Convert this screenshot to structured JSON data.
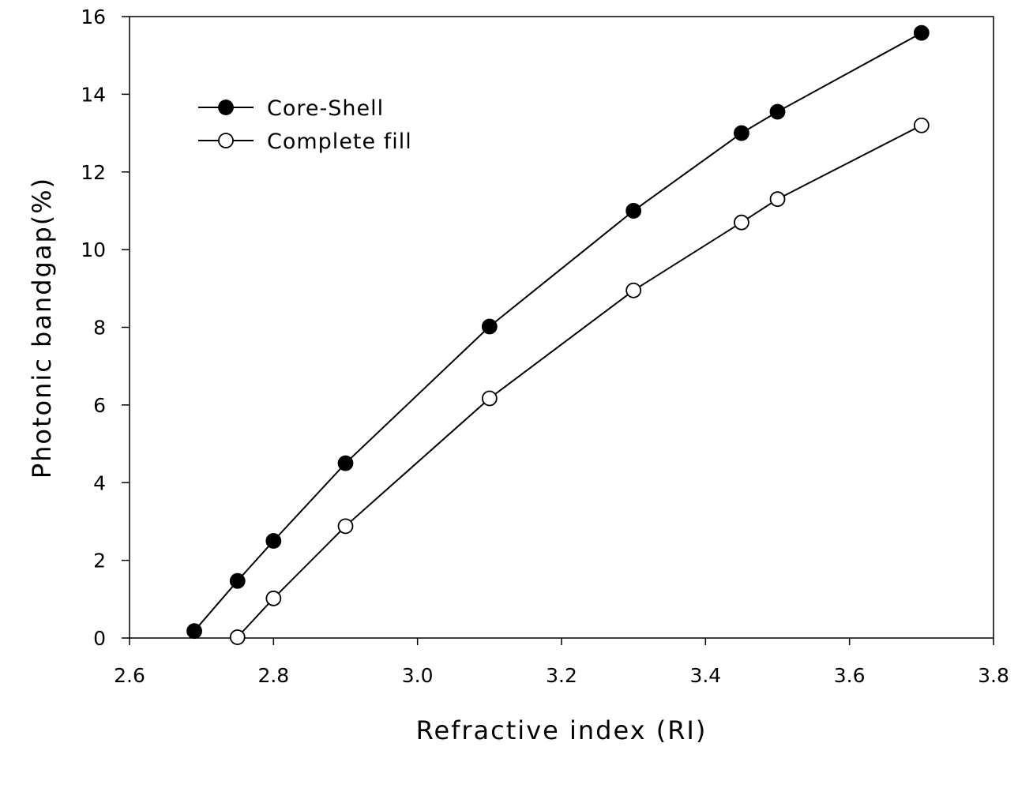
{
  "chart_data": {
    "type": "line",
    "xlabel": "Refractive index (RI)",
    "ylabel": "Photonic bandgap(%)",
    "xlim": [
      2.6,
      3.8
    ],
    "ylim": [
      0,
      16
    ],
    "xticks": [
      2.6,
      2.8,
      3.0,
      3.2,
      3.4,
      3.6,
      3.8
    ],
    "xtick_labels": [
      "2.6",
      "2.8",
      "3.0",
      "3.2",
      "3.4",
      "3.6",
      "3.8"
    ],
    "yticks": [
      0,
      2,
      4,
      6,
      8,
      10,
      12,
      14,
      16
    ],
    "ytick_labels": [
      "0",
      "2",
      "4",
      "6",
      "8",
      "10",
      "12",
      "14",
      "16"
    ],
    "grid": false,
    "legend_position": "top-left",
    "series": [
      {
        "name": "Core-Shell",
        "marker": "filled-circle",
        "color": "#000000",
        "x": [
          2.69,
          2.75,
          2.8,
          2.9,
          3.1,
          3.3,
          3.45,
          3.5,
          3.7
        ],
        "y": [
          0.18,
          1.47,
          2.5,
          4.5,
          8.02,
          11.0,
          13.0,
          13.55,
          15.58
        ]
      },
      {
        "name": "Complete fill",
        "marker": "open-circle",
        "color": "#000000",
        "x": [
          2.75,
          2.8,
          2.9,
          3.1,
          3.3,
          3.45,
          3.5,
          3.7
        ],
        "y": [
          0.02,
          1.02,
          2.88,
          6.17,
          8.95,
          10.7,
          11.3,
          13.2
        ]
      }
    ]
  }
}
